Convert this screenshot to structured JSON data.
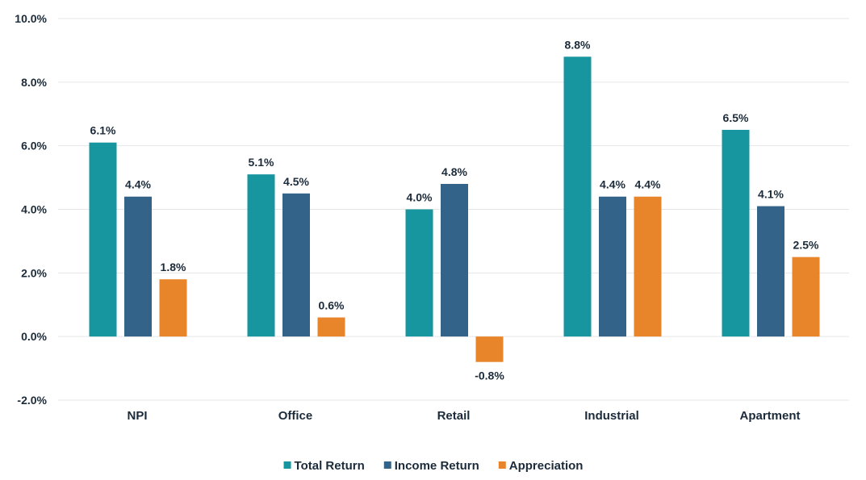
{
  "chart_data": {
    "type": "bar",
    "title": "",
    "xlabel": "",
    "ylabel": "",
    "categories": [
      "NPI",
      "Office",
      "Retail",
      "Industrial",
      "Apartment"
    ],
    "series": [
      {
        "name": "Total Return",
        "color": "#1796a0",
        "values": [
          6.1,
          5.1,
          4.0,
          8.8,
          6.5
        ]
      },
      {
        "name": "Income Return",
        "color": "#346389",
        "values": [
          4.4,
          4.5,
          4.8,
          4.4,
          4.1
        ]
      },
      {
        "name": "Appreciation",
        "color": "#e8852a",
        "values": [
          1.8,
          0.6,
          -0.8,
          4.4,
          2.5
        ]
      }
    ],
    "ylim": [
      -2.0,
      10.0
    ],
    "yticks": [
      -2.0,
      0.0,
      2.0,
      4.0,
      6.0,
      8.0,
      10.0
    ],
    "ytick_labels": [
      "-2.0%",
      "0.0%",
      "2.0%",
      "4.0%",
      "6.0%",
      "8.0%",
      "10.0%"
    ],
    "data_labels": [
      [
        "6.1%",
        "5.1%",
        "4.0%",
        "8.8%",
        "6.5%"
      ],
      [
        "4.4%",
        "4.5%",
        "4.8%",
        "4.4%",
        "4.1%"
      ],
      [
        "1.8%",
        "0.6%",
        "-0.8%",
        "4.4%",
        "2.5%"
      ]
    ],
    "grid": true,
    "legend_position": "bottom-center"
  }
}
